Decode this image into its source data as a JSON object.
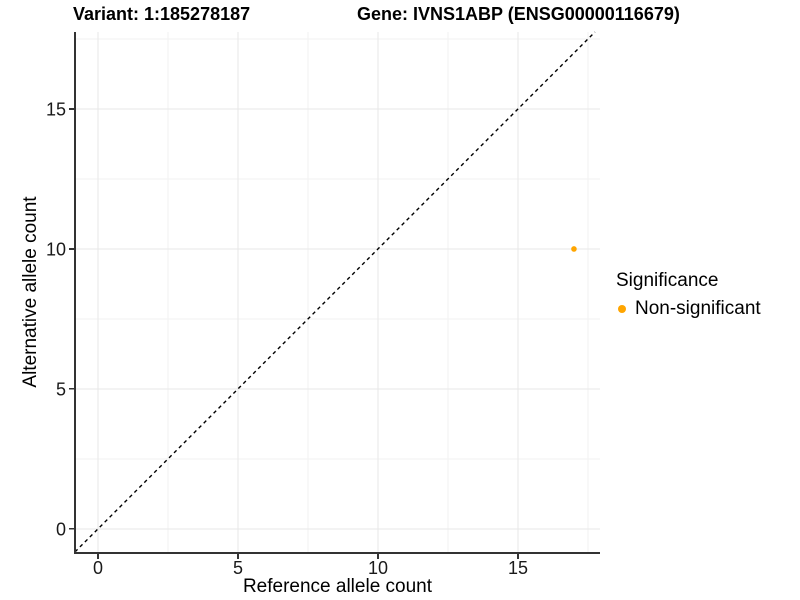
{
  "titles": {
    "variant": "Variant: 1:185278187",
    "gene": "Gene: IVNS1ABP (ENSG00000116679)"
  },
  "chart_data": {
    "type": "scatter",
    "xlabel": "Reference allele count",
    "ylabel": "Alternative allele count",
    "xlim": [
      -0.82,
      17.93
    ],
    "ylim": [
      -0.86,
      17.75
    ],
    "x_ticks": [
      0,
      5,
      10,
      15
    ],
    "y_ticks": [
      0,
      5,
      10,
      15
    ],
    "minor_ticks": [
      2.5,
      7.5,
      12.5,
      17.5
    ],
    "grid": true,
    "identity_line": {
      "style": "dashed",
      "slope": 1,
      "intercept": 0
    },
    "points": [
      {
        "x": 17,
        "y": 10,
        "series": "Non-significant"
      }
    ],
    "legend_position": "right",
    "legend": {
      "title": "Significance",
      "items": [
        {
          "label": "Non-significant",
          "color": "#FFA500"
        }
      ]
    }
  },
  "colors": {
    "point": "#FFA500",
    "grid_major": "#e7e7e7",
    "grid_minor": "#f2f2f2",
    "axis_line": "#333333",
    "tick_text": "#1a1a1a",
    "identity_line": "#000000",
    "background": "#ffffff"
  }
}
